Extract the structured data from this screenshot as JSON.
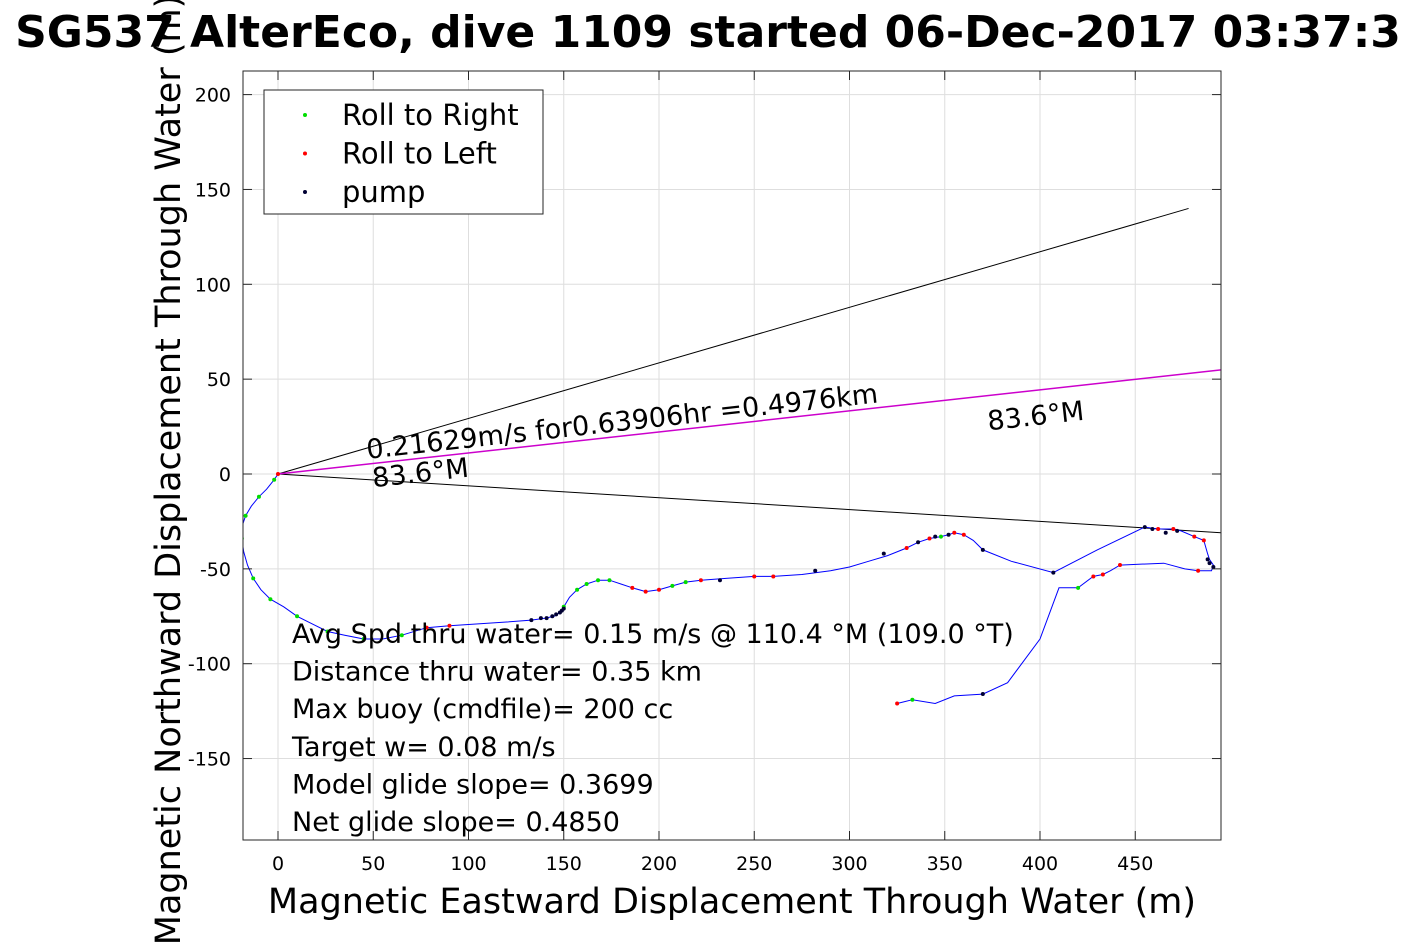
{
  "chart_data": {
    "type": "scatter",
    "title": "SG537 AlterEco, dive 1109 started 06-Dec-2017 03:37:3",
    "xlabel": "Magnetic Eastward Displacement Through Water (m)",
    "ylabel": "Magnetic Northward Displacement Through Water (m)",
    "xlim": [
      -18,
      496
    ],
    "ylim": [
      -192,
      213
    ],
    "xticks": [
      0,
      50,
      100,
      150,
      200,
      250,
      300,
      350,
      400,
      450
    ],
    "yticks": [
      -150,
      -100,
      -50,
      0,
      50,
      100,
      150,
      200
    ],
    "grid": true,
    "legend_position": "top-left",
    "legend": [
      {
        "name": "Roll to Right",
        "color": "#00dd00"
      },
      {
        "name": "Roll to Left",
        "color": "#ff0000"
      },
      {
        "name": "pump",
        "color": "#000033"
      }
    ],
    "colors": {
      "track": "#0000ff",
      "heading_line": "#cc00cc",
      "cone": "#000000"
    },
    "track": [
      [
        0,
        0
      ],
      [
        -2,
        -3
      ],
      [
        -6,
        -8
      ],
      [
        -10,
        -12
      ],
      [
        -14,
        -17
      ],
      [
        -17,
        -22
      ],
      [
        -19,
        -28
      ],
      [
        -19,
        -34
      ],
      [
        -18,
        -41
      ],
      [
        -16,
        -48
      ],
      [
        -13,
        -55
      ],
      [
        -9,
        -61
      ],
      [
        -4,
        -66
      ],
      [
        3,
        -70
      ],
      [
        10,
        -75
      ],
      [
        18,
        -79
      ],
      [
        26,
        -83
      ],
      [
        35,
        -85
      ],
      [
        45,
        -87
      ],
      [
        55,
        -87
      ],
      [
        65,
        -85
      ],
      [
        78,
        -81
      ],
      [
        90,
        -80
      ],
      [
        105,
        -79
      ],
      [
        120,
        -78
      ],
      [
        133,
        -77
      ],
      [
        140,
        -76
      ],
      [
        145,
        -75
      ],
      [
        148,
        -73
      ],
      [
        150,
        -70
      ],
      [
        153,
        -65
      ],
      [
        157,
        -61
      ],
      [
        162,
        -58
      ],
      [
        168,
        -56
      ],
      [
        174,
        -56
      ],
      [
        180,
        -58
      ],
      [
        186,
        -60
      ],
      [
        193,
        -62
      ],
      [
        200,
        -61
      ],
      [
        207,
        -59
      ],
      [
        214,
        -57
      ],
      [
        222,
        -56
      ],
      [
        236,
        -55
      ],
      [
        250,
        -54
      ],
      [
        260,
        -54
      ],
      [
        275,
        -53
      ],
      [
        290,
        -51
      ],
      [
        300,
        -49
      ],
      [
        310,
        -46
      ],
      [
        320,
        -43
      ],
      [
        330,
        -39
      ],
      [
        336,
        -36
      ],
      [
        342,
        -34
      ],
      [
        348,
        -33
      ],
      [
        352,
        -32
      ],
      [
        355,
        -31
      ],
      [
        360,
        -32
      ],
      [
        365,
        -35
      ],
      [
        370,
        -40
      ],
      [
        385,
        -46
      ],
      [
        407,
        -52
      ],
      [
        430,
        -40
      ],
      [
        455,
        -28
      ],
      [
        462,
        -29
      ],
      [
        470,
        -29
      ],
      [
        474,
        -30
      ],
      [
        481,
        -33
      ],
      [
        486,
        -35
      ],
      [
        488,
        -42
      ],
      [
        489,
        -45
      ],
      [
        491,
        -48
      ],
      [
        490,
        -51
      ],
      [
        483,
        -51
      ],
      [
        476,
        -50
      ],
      [
        465,
        -47
      ],
      [
        442,
        -48
      ],
      [
        437,
        -51
      ],
      [
        433,
        -53
      ],
      [
        428,
        -54
      ],
      [
        420,
        -60
      ],
      [
        410,
        -60
      ],
      [
        400,
        -87
      ],
      [
        383,
        -110
      ],
      [
        370,
        -116
      ],
      [
        355,
        -117
      ],
      [
        345,
        -121
      ],
      [
        333,
        -119
      ],
      [
        329,
        -120
      ],
      [
        325,
        -121
      ]
    ],
    "roll_right": [
      [
        -2,
        -3
      ],
      [
        -10,
        -12
      ],
      [
        -17,
        -22
      ],
      [
        -19,
        -34
      ],
      [
        -13,
        -55
      ],
      [
        -4,
        -66
      ],
      [
        10,
        -75
      ],
      [
        26,
        -83
      ],
      [
        45,
        -87
      ],
      [
        65,
        -85
      ],
      [
        150,
        -70
      ],
      [
        157,
        -61
      ],
      [
        162,
        -58
      ],
      [
        168,
        -56
      ],
      [
        174,
        -56
      ],
      [
        207,
        -59
      ],
      [
        214,
        -57
      ],
      [
        348,
        -33
      ],
      [
        420,
        -60
      ],
      [
        333,
        -119
      ]
    ],
    "roll_left": [
      [
        0,
        0
      ],
      [
        78,
        -81
      ],
      [
        90,
        -80
      ],
      [
        186,
        -60
      ],
      [
        193,
        -62
      ],
      [
        200,
        -61
      ],
      [
        222,
        -56
      ],
      [
        250,
        -54
      ],
      [
        260,
        -54
      ],
      [
        330,
        -39
      ],
      [
        342,
        -34
      ],
      [
        355,
        -31
      ],
      [
        360,
        -32
      ],
      [
        462,
        -29
      ],
      [
        470,
        -29
      ],
      [
        481,
        -33
      ],
      [
        486,
        -35
      ],
      [
        483,
        -51
      ],
      [
        442,
        -48
      ],
      [
        433,
        -53
      ],
      [
        428,
        -54
      ],
      [
        325,
        -121
      ]
    ],
    "pump": [
      [
        133,
        -77
      ],
      [
        138,
        -76
      ],
      [
        141,
        -76
      ],
      [
        144,
        -75
      ],
      [
        146,
        -74
      ],
      [
        148,
        -73
      ],
      [
        149,
        -72
      ],
      [
        150,
        -71
      ],
      [
        232,
        -56
      ],
      [
        282,
        -51
      ],
      [
        318,
        -42
      ],
      [
        336,
        -36
      ],
      [
        345,
        -33
      ],
      [
        352,
        -32
      ],
      [
        370,
        -40
      ],
      [
        407,
        -52
      ],
      [
        455,
        -28
      ],
      [
        459,
        -29
      ],
      [
        466,
        -31
      ],
      [
        472,
        -30
      ],
      [
        488,
        -45
      ],
      [
        489,
        -47
      ],
      [
        491,
        -49
      ],
      [
        370,
        -116
      ]
    ],
    "cone_upper": [
      [
        0,
        0
      ],
      [
        478,
        140
      ]
    ],
    "cone_lower": [
      [
        0,
        0
      ],
      [
        496,
        -31
      ]
    ],
    "heading_line": [
      [
        0,
        0
      ],
      [
        496,
        55
      ]
    ],
    "annotations": [
      {
        "text": "0.21629m/s for0.63906hr =0.4976km",
        "x": 47,
        "y": 8,
        "rotate": -6.3
      },
      {
        "text": "83.6°M",
        "x": 50,
        "y": -7,
        "rotate": -6.3
      },
      {
        "text": "83.6°M",
        "x": 373,
        "y": 23,
        "rotate": -6.3
      }
    ],
    "stats": [
      "Avg Spd thru water=  0.15 m/s @ 110.4 °M (109.0 °T)",
      "Distance thru water=  0.35 km",
      "Max buoy (cmdfile)= 200 cc",
      "Target w= 0.08 m/s",
      "Model glide slope= 0.3699",
      "Net glide slope= 0.4850"
    ]
  }
}
